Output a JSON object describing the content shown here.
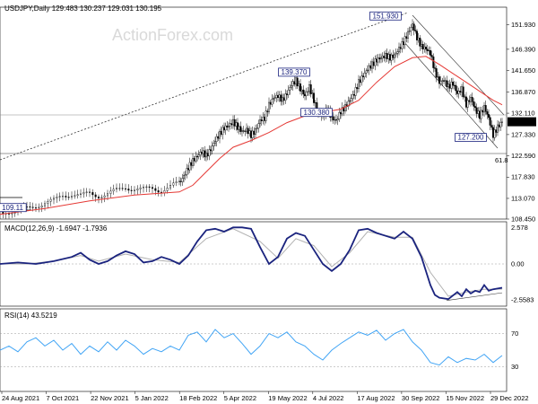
{
  "watermark": "ActionForex.com",
  "chart_data": [
    {
      "type": "candlestick",
      "header": "USDJPY,Daily  129.483 130.237 129.031 130.195",
      "ylim": [
        108.45,
        155.8
      ],
      "y_ticks": [
        "151.930",
        "146.390",
        "141.650",
        "136.870",
        "132.110",
        "127.330",
        "122.590",
        "117.830",
        "113.070",
        "108.450"
      ],
      "current_price": "130.195",
      "x_ticks": [
        "24 Aug 2021",
        "7 Oct 2021",
        "22 Nov 2021",
        "5 Jan 2022",
        "18 Feb 2022",
        "5 Apr 2022",
        "19 May 2022",
        "4 Jul 2022",
        "17 Aug 2022",
        "30 Sep 2022",
        "15 Nov 2022",
        "29 Dec 2022"
      ],
      "annotations": [
        {
          "label": "151.930",
          "value": 151.93
        },
        {
          "label": "139.370",
          "value": 139.37
        },
        {
          "label": "130.380",
          "value": 130.38
        },
        {
          "label": "127.200",
          "value": 127.2
        },
        {
          "label": "109.11",
          "value": 109.11
        },
        {
          "label": "61.8",
          "value": 121.7
        }
      ],
      "close_path": [
        [
          0,
          110.0
        ],
        [
          10,
          110.2
        ],
        [
          20,
          110.0
        ],
        [
          30,
          110.8
        ],
        [
          40,
          111.5
        ],
        [
          50,
          112.0
        ],
        [
          60,
          112.5
        ],
        [
          70,
          113.8
        ],
        [
          80,
          114.0
        ],
        [
          90,
          113.6
        ],
        [
          100,
          114.2
        ],
        [
          110,
          113.7
        ],
        [
          120,
          114.0
        ],
        [
          130,
          114.8
        ],
        [
          140,
          115.6
        ],
        [
          150,
          115.2
        ],
        [
          160,
          115.0
        ],
        [
          170,
          115.3
        ],
        [
          180,
          114.9
        ],
        [
          190,
          115.7
        ],
        [
          200,
          116.5
        ],
        [
          205,
          118.0
        ],
        [
          210,
          120.0
        ],
        [
          215,
          121.5
        ],
        [
          220,
          122.5
        ],
        [
          225,
          123.5
        ],
        [
          230,
          122.6
        ],
        [
          235,
          124.0
        ],
        [
          240,
          126.0
        ],
        [
          245,
          127.5
        ],
        [
          250,
          128.8
        ],
        [
          255,
          129.3
        ],
        [
          260,
          130.2
        ],
        [
          265,
          129.0
        ],
        [
          270,
          128.0
        ],
        [
          275,
          128.4
        ],
        [
          280,
          127.2
        ],
        [
          285,
          128.2
        ],
        [
          290,
          130.5
        ],
        [
          295,
          131.0
        ],
        [
          300,
          134.0
        ],
        [
          305,
          135.5
        ],
        [
          310,
          136.0
        ],
        [
          315,
          135.0
        ],
        [
          320,
          136.5
        ],
        [
          325,
          138.5
        ],
        [
          330,
          139.4
        ],
        [
          335,
          137.5
        ],
        [
          340,
          136.0
        ],
        [
          345,
          138.0
        ],
        [
          350,
          135.0
        ],
        [
          355,
          132.0
        ],
        [
          360,
          131.5
        ],
        [
          365,
          133.0
        ],
        [
          370,
          131.0
        ],
        [
          375,
          130.4
        ],
        [
          380,
          132.5
        ],
        [
          385,
          133.5
        ],
        [
          390,
          135.0
        ],
        [
          395,
          136.5
        ],
        [
          400,
          139.0
        ],
        [
          405,
          140.5
        ],
        [
          410,
          142.0
        ],
        [
          415,
          143.0
        ],
        [
          420,
          144.0
        ],
        [
          425,
          144.5
        ],
        [
          430,
          145.0
        ],
        [
          435,
          144.5
        ],
        [
          440,
          145.0
        ],
        [
          445,
          146.5
        ],
        [
          450,
          148.0
        ],
        [
          455,
          150.0
        ],
        [
          460,
          151.9
        ],
        [
          465,
          149.0
        ],
        [
          470,
          147.0
        ],
        [
          475,
          146.5
        ],
        [
          480,
          145.5
        ],
        [
          485,
          141.5
        ],
        [
          490,
          139.0
        ],
        [
          495,
          139.5
        ],
        [
          500,
          138.0
        ],
        [
          505,
          138.8
        ],
        [
          510,
          136.5
        ],
        [
          515,
          137.5
        ],
        [
          520,
          134.0
        ],
        [
          525,
          135.5
        ],
        [
          530,
          133.0
        ],
        [
          535,
          131.5
        ],
        [
          540,
          133.5
        ],
        [
          545,
          131.0
        ],
        [
          550,
          127.2
        ],
        [
          555,
          129.0
        ],
        [
          560,
          130.2
        ]
      ],
      "ma_path": [
        [
          0,
          109.5
        ],
        [
          50,
          110.8
        ],
        [
          100,
          112.5
        ],
        [
          150,
          113.8
        ],
        [
          200,
          114.5
        ],
        [
          215,
          116.0
        ],
        [
          230,
          119.0
        ],
        [
          245,
          122.0
        ],
        [
          260,
          124.5
        ],
        [
          280,
          126.0
        ],
        [
          300,
          127.8
        ],
        [
          320,
          130.0
        ],
        [
          340,
          131.5
        ],
        [
          360,
          132.3
        ],
        [
          380,
          133.0
        ],
        [
          400,
          135.0
        ],
        [
          420,
          139.0
        ],
        [
          440,
          142.5
        ],
        [
          460,
          144.5
        ],
        [
          475,
          144.8
        ],
        [
          490,
          143.0
        ],
        [
          505,
          141.0
        ],
        [
          520,
          139.0
        ],
        [
          535,
          137.0
        ],
        [
          550,
          135.0
        ],
        [
          560,
          134.0
        ]
      ]
    },
    {
      "type": "line",
      "header": "MACD(12,26,9) -1.6947 -1.7936",
      "ylim": [
        -3.0,
        3.0
      ],
      "y_ticks": [
        "2.578",
        "0.00",
        "-2.5583"
      ],
      "macd": [
        [
          0,
          0.0
        ],
        [
          20,
          0.1
        ],
        [
          40,
          0.0
        ],
        [
          60,
          0.2
        ],
        [
          80,
          0.5
        ],
        [
          90,
          0.8
        ],
        [
          100,
          0.3
        ],
        [
          110,
          0.0
        ],
        [
          120,
          0.2
        ],
        [
          130,
          0.6
        ],
        [
          140,
          0.9
        ],
        [
          150,
          0.7
        ],
        [
          160,
          0.1
        ],
        [
          170,
          0.2
        ],
        [
          180,
          0.5
        ],
        [
          190,
          0.3
        ],
        [
          200,
          0.0
        ],
        [
          210,
          0.6
        ],
        [
          220,
          1.6
        ],
        [
          230,
          2.4
        ],
        [
          240,
          2.5
        ],
        [
          250,
          2.3
        ],
        [
          260,
          2.6
        ],
        [
          270,
          2.6
        ],
        [
          280,
          2.5
        ],
        [
          290,
          1.2
        ],
        [
          300,
          0.0
        ],
        [
          310,
          0.5
        ],
        [
          320,
          1.8
        ],
        [
          330,
          2.2
        ],
        [
          340,
          2.0
        ],
        [
          350,
          1.0
        ],
        [
          360,
          0.0
        ],
        [
          370,
          -0.5
        ],
        [
          380,
          0.0
        ],
        [
          390,
          1.0
        ],
        [
          400,
          2.4
        ],
        [
          410,
          2.5
        ],
        [
          420,
          2.2
        ],
        [
          430,
          2.0
        ],
        [
          440,
          1.8
        ],
        [
          450,
          2.3
        ],
        [
          460,
          1.8
        ],
        [
          470,
          0.5
        ],
        [
          480,
          -1.5
        ],
        [
          485,
          -2.2
        ],
        [
          490,
          -2.4
        ],
        [
          500,
          -2.5
        ],
        [
          510,
          -2.0
        ],
        [
          515,
          -2.3
        ],
        [
          520,
          -1.8
        ],
        [
          525,
          -2.1
        ],
        [
          530,
          -1.9
        ],
        [
          535,
          -2.0
        ],
        [
          540,
          -1.5
        ],
        [
          545,
          -1.9
        ],
        [
          550,
          -1.8
        ],
        [
          560,
          -1.69
        ]
      ],
      "signal": [
        [
          0,
          0.0
        ],
        [
          30,
          0.0
        ],
        [
          60,
          0.2
        ],
        [
          90,
          0.6
        ],
        [
          110,
          0.2
        ],
        [
          140,
          0.7
        ],
        [
          170,
          0.3
        ],
        [
          200,
          0.1
        ],
        [
          230,
          1.8
        ],
        [
          260,
          2.5
        ],
        [
          290,
          1.6
        ],
        [
          310,
          0.4
        ],
        [
          330,
          1.8
        ],
        [
          350,
          1.3
        ],
        [
          370,
          -0.2
        ],
        [
          390,
          0.8
        ],
        [
          410,
          2.3
        ],
        [
          440,
          1.9
        ],
        [
          460,
          1.9
        ],
        [
          480,
          -0.6
        ],
        [
          500,
          -2.3
        ],
        [
          520,
          -2.0
        ],
        [
          540,
          -1.8
        ],
        [
          560,
          -1.79
        ]
      ]
    },
    {
      "type": "line",
      "header": "RSI(14) 43.5219",
      "ylim": [
        0,
        100
      ],
      "y_ticks": [
        "70",
        "30"
      ],
      "rsi": [
        [
          0,
          50
        ],
        [
          10,
          55
        ],
        [
          20,
          48
        ],
        [
          30,
          60
        ],
        [
          40,
          65
        ],
        [
          50,
          55
        ],
        [
          60,
          62
        ],
        [
          70,
          50
        ],
        [
          80,
          58
        ],
        [
          90,
          45
        ],
        [
          100,
          55
        ],
        [
          110,
          48
        ],
        [
          120,
          60
        ],
        [
          130,
          50
        ],
        [
          140,
          62
        ],
        [
          150,
          55
        ],
        [
          160,
          45
        ],
        [
          170,
          52
        ],
        [
          180,
          48
        ],
        [
          190,
          55
        ],
        [
          200,
          50
        ],
        [
          210,
          68
        ],
        [
          220,
          72
        ],
        [
          230,
          60
        ],
        [
          240,
          75
        ],
        [
          250,
          65
        ],
        [
          260,
          70
        ],
        [
          270,
          58
        ],
        [
          280,
          45
        ],
        [
          290,
          55
        ],
        [
          300,
          70
        ],
        [
          310,
          65
        ],
        [
          320,
          72
        ],
        [
          330,
          60
        ],
        [
          340,
          55
        ],
        [
          350,
          45
        ],
        [
          360,
          38
        ],
        [
          370,
          50
        ],
        [
          380,
          58
        ],
        [
          390,
          65
        ],
        [
          400,
          72
        ],
        [
          410,
          68
        ],
        [
          420,
          74
        ],
        [
          430,
          62
        ],
        [
          440,
          70
        ],
        [
          450,
          75
        ],
        [
          460,
          60
        ],
        [
          470,
          50
        ],
        [
          480,
          35
        ],
        [
          490,
          32
        ],
        [
          500,
          42
        ],
        [
          510,
          35
        ],
        [
          520,
          40
        ],
        [
          530,
          38
        ],
        [
          540,
          45
        ],
        [
          550,
          35
        ],
        [
          560,
          43.5
        ]
      ]
    }
  ]
}
